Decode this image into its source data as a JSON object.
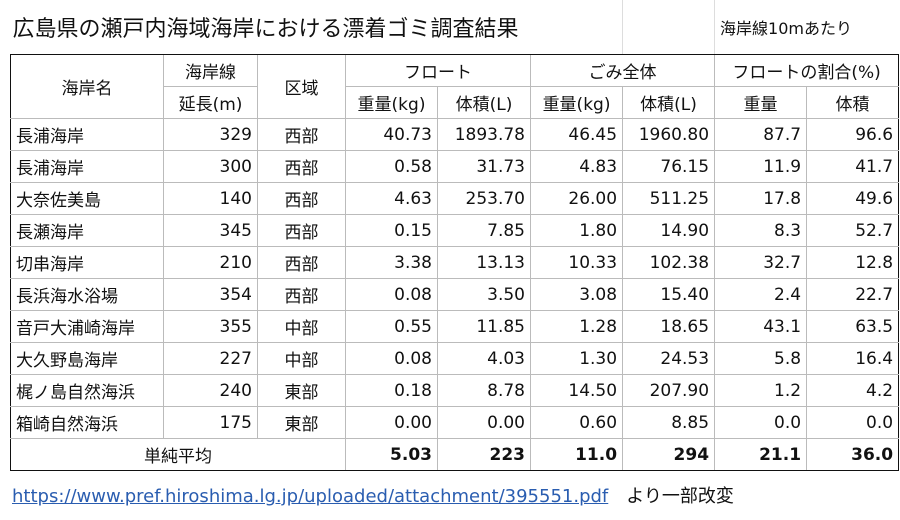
{
  "title": "広島県の瀬戸内海域海岸における漂着ゴミ調査結果",
  "note": "海岸線10mあたり",
  "header": {
    "row1": [
      "海岸名",
      "海岸線",
      "区域",
      "フロート",
      "ごみ全体",
      "フロートの割合(%)"
    ],
    "row2": [
      "延長(m)",
      "重量(kg)",
      "体積(L)",
      "重量(kg)",
      "体積(L)",
      "重量",
      "体積"
    ]
  },
  "rows": [
    [
      "長浦海岸",
      "329",
      "西部",
      "40.73",
      "1893.78",
      "46.45",
      "1960.80",
      "87.7",
      "96.6"
    ],
    [
      "長浦海岸",
      "300",
      "西部",
      "0.58",
      "31.73",
      "4.83",
      "76.15",
      "11.9",
      "41.7"
    ],
    [
      "大奈佐美島",
      "140",
      "西部",
      "4.63",
      "253.70",
      "26.00",
      "511.25",
      "17.8",
      "49.6"
    ],
    [
      "長瀬海岸",
      "345",
      "西部",
      "0.15",
      "7.85",
      "1.80",
      "14.90",
      "8.3",
      "52.7"
    ],
    [
      "切串海岸",
      "210",
      "西部",
      "3.38",
      "13.13",
      "10.33",
      "102.38",
      "32.7",
      "12.8"
    ],
    [
      "長浜海水浴場",
      "354",
      "西部",
      "0.08",
      "3.50",
      "3.08",
      "15.40",
      "2.4",
      "22.7"
    ],
    [
      "音戸大浦崎海岸",
      "355",
      "中部",
      "0.55",
      "11.85",
      "1.28",
      "18.65",
      "43.1",
      "63.5"
    ],
    [
      "大久野島海岸",
      "227",
      "中部",
      "0.08",
      "4.03",
      "1.30",
      "24.53",
      "5.8",
      "16.4"
    ],
    [
      "梶ノ島自然海浜",
      "240",
      "東部",
      "0.18",
      "8.78",
      "14.50",
      "207.90",
      "1.2",
      "4.2"
    ],
    [
      "箱崎自然海浜",
      "175",
      "東部",
      "0.00",
      "0.00",
      "0.60",
      "8.85",
      "0.0",
      "0.0"
    ]
  ],
  "average": {
    "label": "単純平均",
    "values": [
      "5.03",
      "223",
      "11.0",
      "294",
      "21.1",
      "36.0"
    ]
  },
  "source": {
    "link": "https://www.pref.hiroshima.lg.jp/uploaded/attachment/395551.pdf",
    "text": "より一部改変"
  }
}
